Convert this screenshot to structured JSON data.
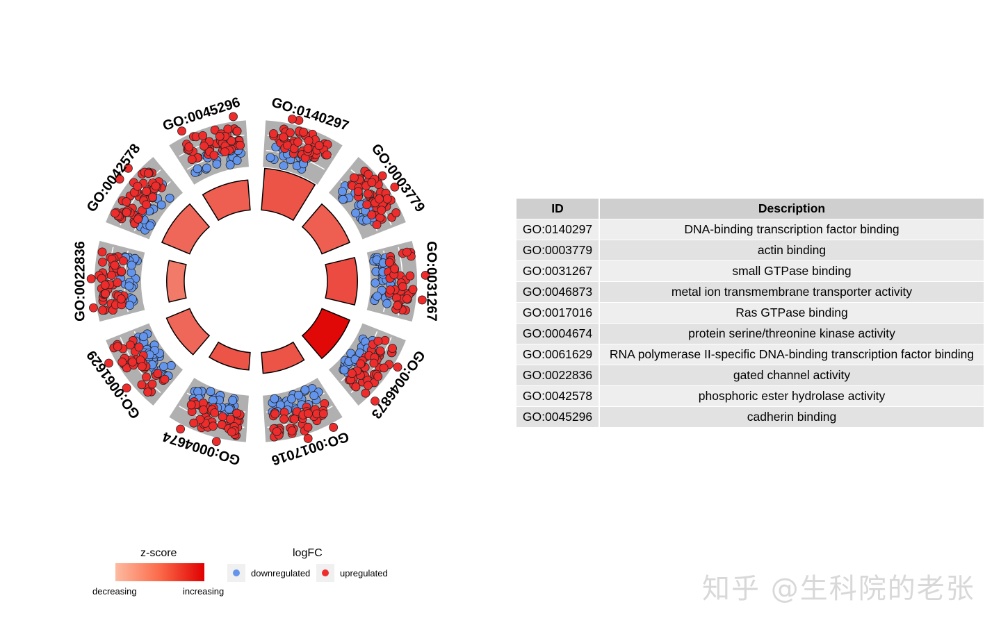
{
  "chart_data": {
    "type": "circular",
    "categories": [
      "GO:0140297",
      "GO:0003779",
      "GO:0031267",
      "GO:0046873",
      "GO:0017016",
      "GO:0004674",
      "GO:0061629",
      "GO:0022836",
      "GO:0042578",
      "GO:0045296"
    ],
    "zscore_relative": [
      0.55,
      0.5,
      0.6,
      0.95,
      0.55,
      0.55,
      0.45,
      0.35,
      0.45,
      0.5
    ],
    "inner_bar_height_relative": [
      1.0,
      0.72,
      0.72,
      0.72,
      0.5,
      0.42,
      0.6,
      0.42,
      0.72,
      0.72
    ],
    "upregulated_share": [
      0.7,
      0.65,
      0.55,
      0.6,
      0.55,
      0.6,
      0.45,
      0.65,
      0.75,
      0.7
    ],
    "legend": {
      "zscore_title": "z-score",
      "zscore_low": "decreasing",
      "zscore_high": "increasing",
      "logfc_title": "logFC",
      "logfc_down": "downregulated",
      "logfc_up": "upregulated"
    },
    "colors": {
      "down": "#6495ed",
      "up": "#ee2c2c",
      "gray_band": "#b0b0b0",
      "zscore_low": "#fcbba1",
      "zscore_high": "#e00000"
    }
  },
  "table": {
    "headers": {
      "id": "ID",
      "description": "Description"
    },
    "rows": [
      {
        "id": "GO:0140297",
        "description": "DNA-binding transcription factor binding"
      },
      {
        "id": "GO:0003779",
        "description": "actin binding"
      },
      {
        "id": "GO:0031267",
        "description": "small GTPase binding"
      },
      {
        "id": "GO:0046873",
        "description": "metal ion transmembrane transporter activity"
      },
      {
        "id": "GO:0017016",
        "description": "Ras GTPase binding"
      },
      {
        "id": "GO:0004674",
        "description": "protein serine/threonine kinase activity"
      },
      {
        "id": "GO:0061629",
        "description": "RNA polymerase II-specific DNA-binding transcription factor binding"
      },
      {
        "id": "GO:0022836",
        "description": "gated channel activity"
      },
      {
        "id": "GO:0042578",
        "description": "phosphoric ester hydrolase activity"
      },
      {
        "id": "GO:0045296",
        "description": "cadherin binding"
      }
    ]
  },
  "watermark": "知乎 @生科院的老张"
}
